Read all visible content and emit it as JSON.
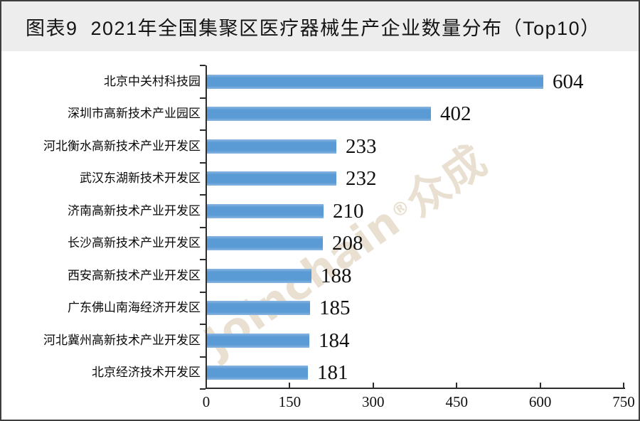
{
  "title": "图表9  2021年全国集聚区医疗器械生产企业数量分布（Top10）",
  "watermark": {
    "brand": "Joinchain",
    "reg": "®",
    "cn": "众成",
    "color": "#e9e0d2"
  },
  "chart_data": {
    "type": "bar",
    "orientation": "horizontal",
    "title": "图表9 2021年全国集聚区医疗器械生产企业数量分布（Top10）",
    "categories": [
      "北京中关村科技园",
      "深圳市高新技术产业园区",
      "河北衡水高新技术产业开发区",
      "武汉东湖新技术开发区",
      "济南高新技术产业开发区",
      "长沙高新技术产业开发区",
      "西安高新技术产业开发区",
      "广东佛山南海经济开发区",
      "河北冀州高新技术产业开发区",
      "北京经济技术开发区"
    ],
    "values": [
      604,
      402,
      233,
      232,
      210,
      208,
      188,
      185,
      184,
      181
    ],
    "x_ticks": [
      0,
      150,
      300,
      450,
      600,
      750
    ],
    "xlim": [
      0,
      750
    ],
    "bar_color": "#5b9bd5",
    "grid": false,
    "legend": false
  }
}
